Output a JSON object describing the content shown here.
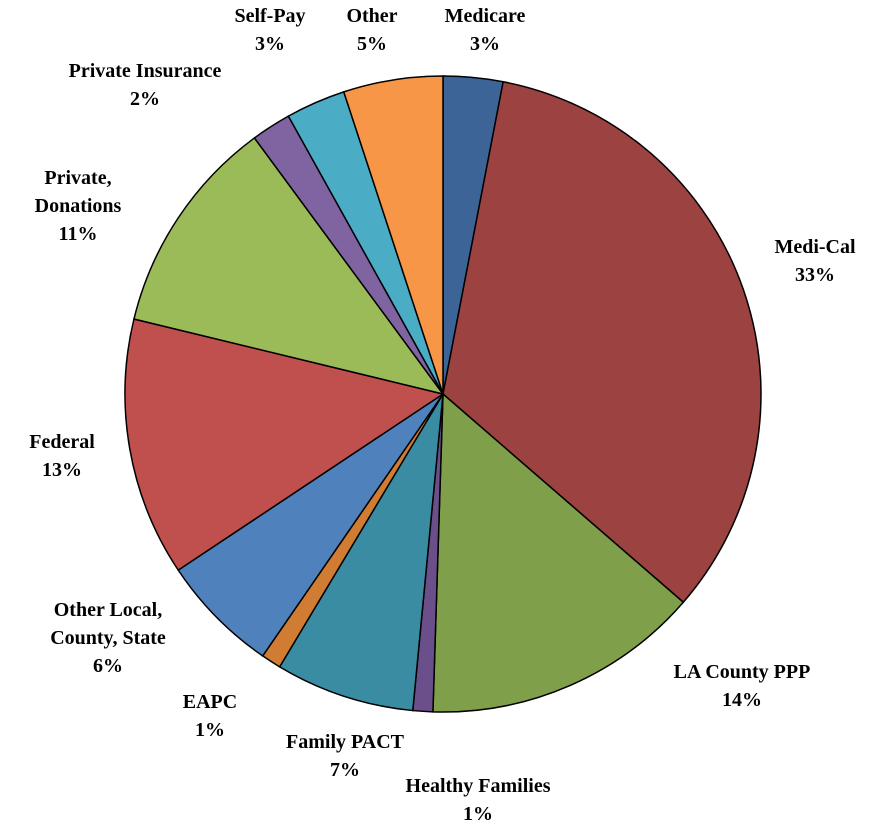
{
  "chart_data": {
    "type": "pie",
    "categories": [
      "Medicare",
      "Medi-Cal",
      "LA County PPP",
      "Healthy Families",
      "Family PACT",
      "EAPC",
      "Other Local, County, State",
      "Federal",
      "Private, Donations",
      "Private Insurance",
      "Self-Pay",
      "Other"
    ],
    "values": [
      3,
      33,
      14,
      1,
      7,
      1,
      6,
      13,
      11,
      2,
      3,
      5
    ],
    "value_labels": [
      "3%",
      "33%",
      "14%",
      "1%",
      "7%",
      "1%",
      "6%",
      "13%",
      "11%",
      "2%",
      "3%",
      "5%"
    ],
    "colors": [
      "#3c6496",
      "#9c4240",
      "#7f9f4a",
      "#6a4f8a",
      "#3a8ca3",
      "#d07c32",
      "#4f81bd",
      "#c0504d",
      "#9bbb59",
      "#8064a2",
      "#4bacc6",
      "#f79646"
    ]
  }
}
